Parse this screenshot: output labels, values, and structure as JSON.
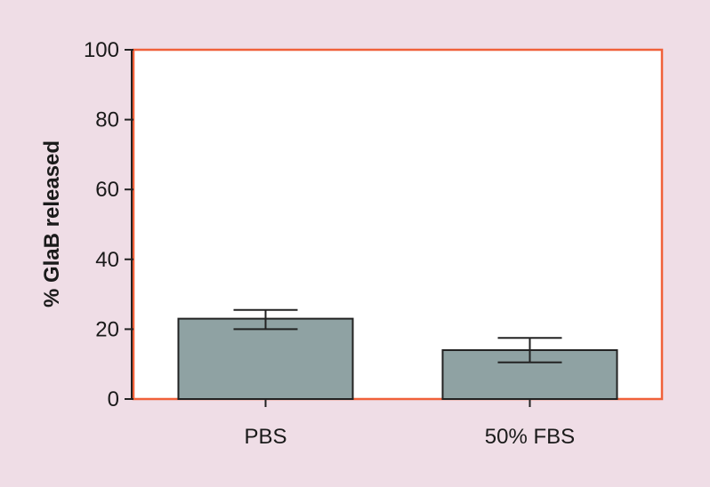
{
  "chart_data": {
    "type": "bar",
    "title": "",
    "xlabel": "",
    "ylabel": "% GlaB released",
    "categories": [
      "PBS",
      "50% FBS"
    ],
    "values": [
      23,
      14
    ],
    "errors": [
      [
        20,
        25.5
      ],
      [
        10.5,
        17.5
      ]
    ],
    "ylim": [
      0,
      100
    ],
    "yticks": [
      0,
      20,
      40,
      60,
      80,
      100
    ],
    "grid": false,
    "legend": "none"
  },
  "colors": {
    "background": "#efdde6",
    "plot_area": "#ffffff",
    "frame": "#f0613a",
    "bar_fill": "#8fa2a3",
    "bar_stroke": "#222222",
    "axis": "#222222"
  }
}
